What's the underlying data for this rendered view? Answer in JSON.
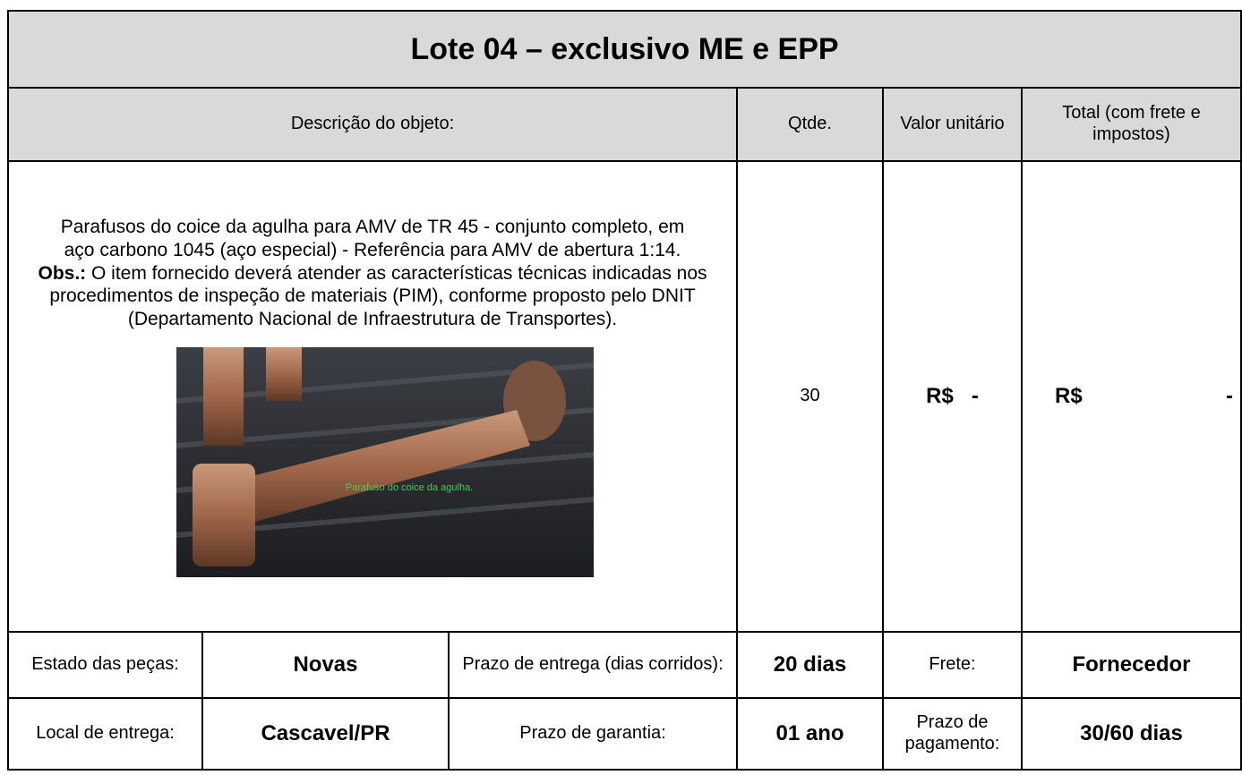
{
  "title": "Lote 04 – exclusivo ME e EPP",
  "header": [
    "Descrição do objeto:",
    "Qtde.",
    "Valor unitário",
    "Total (com frete e impostos)"
  ],
  "item": {
    "description": "Parafusos do coice da agulha para AMV de TR 45 - conjunto completo, em aço carbono 1045 (aço especial) - Referência para AMV de abertura 1:14.",
    "obs_label": "Obs.:",
    "obs_text": "O item fornecido deverá atender as características técnicas indicadas nos procedimentos de inspeção de materiais (PIM), conforme proposto pelo DNIT (Departamento Nacional de Infraestrutura de Transportes).",
    "image_caption": "Parafuso do coice da agulha.",
    "qty": "30",
    "unit_value": {
      "currency": "R$",
      "amount": "-"
    },
    "total": {
      "currency": "R$",
      "amount": "-"
    }
  },
  "details": [
    [
      "Estado das peças:",
      "Novas",
      "Prazo de entrega (dias corridos):",
      "20 dias",
      "Frete:",
      "Fornecedor"
    ],
    [
      "Local de entrega:",
      "Cascavel/PR",
      "Prazo de garantia:",
      "01 ano",
      "Prazo de pagamento:",
      "30/60 dias"
    ]
  ]
}
